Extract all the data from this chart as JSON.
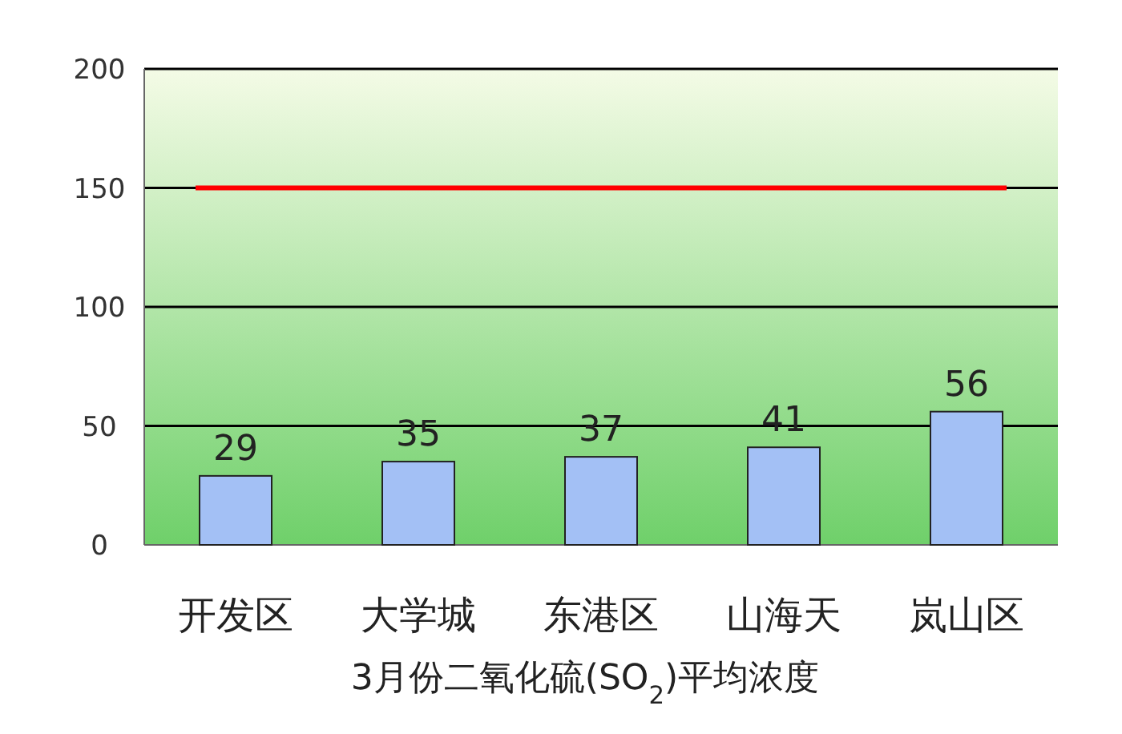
{
  "chart_data": {
    "type": "bar",
    "xlabel": "3月份二氧化硫(SO$_{2}$)平均浓度",
    "categories": [
      "开发区",
      "大学城",
      "东港区",
      "山海天",
      "岚山区"
    ],
    "values": [
      29,
      35,
      37,
      41,
      56
    ],
    "color": "#a3c0f5",
    "ylim": [
      0,
      200
    ],
    "yticks": [
      0,
      50,
      100,
      150,
      200
    ],
    "grid": "y",
    "data_labels": true,
    "ref_lines": [
      {
        "axis": "y",
        "value": 150,
        "color": "#ff0000"
      }
    ]
  }
}
